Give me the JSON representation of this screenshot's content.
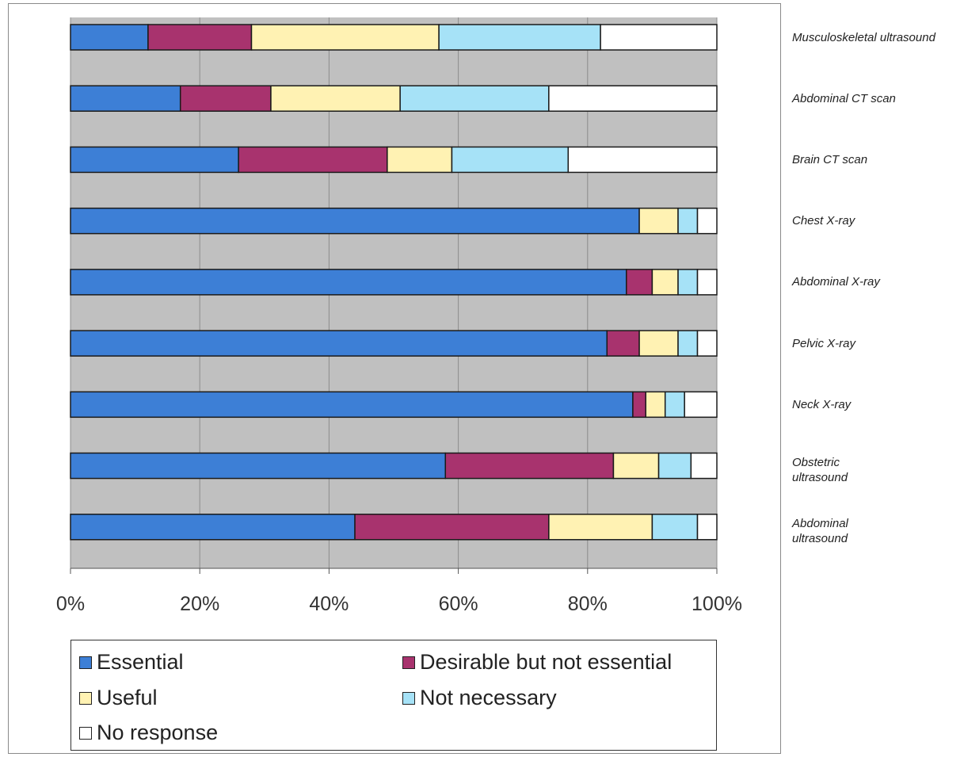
{
  "chart_data": {
    "type": "bar",
    "orientation": "horizontal",
    "stacked": "percent",
    "categories": [
      "Musculoskeletal ultrasound",
      "Abdominal CT scan",
      "Brain CT scan",
      "Chest X-ray",
      "Abdominal X-ray",
      "Pelvic X-ray",
      "Neck X-ray",
      "Obstetric\nultrasound",
      "Abdominal\nultrasound"
    ],
    "series": [
      {
        "name": "Essential",
        "color": "#3d7fd6",
        "values": [
          12,
          17,
          26,
          88,
          86,
          83,
          87,
          58,
          44
        ]
      },
      {
        "name": "Desirable but not essential",
        "color": "#a8336e",
        "values": [
          16,
          14,
          23,
          0,
          4,
          5,
          2,
          26,
          30
        ]
      },
      {
        "name": "Useful",
        "color": "#fff2b3",
        "values": [
          29,
          20,
          10,
          6,
          4,
          6,
          3,
          7,
          16
        ]
      },
      {
        "name": "Not necessary",
        "color": "#a6e2f7",
        "values": [
          25,
          23,
          18,
          3,
          3,
          3,
          3,
          5,
          7
        ]
      },
      {
        "name": "No response",
        "color": "#ffffff",
        "values": [
          18,
          26,
          23,
          3,
          3,
          3,
          5,
          4,
          3
        ]
      }
    ],
    "x_ticks": [
      "0%",
      "20%",
      "40%",
      "60%",
      "80%",
      "100%"
    ],
    "xlim": [
      0,
      100
    ],
    "grid": true,
    "legend_position": "bottom"
  }
}
